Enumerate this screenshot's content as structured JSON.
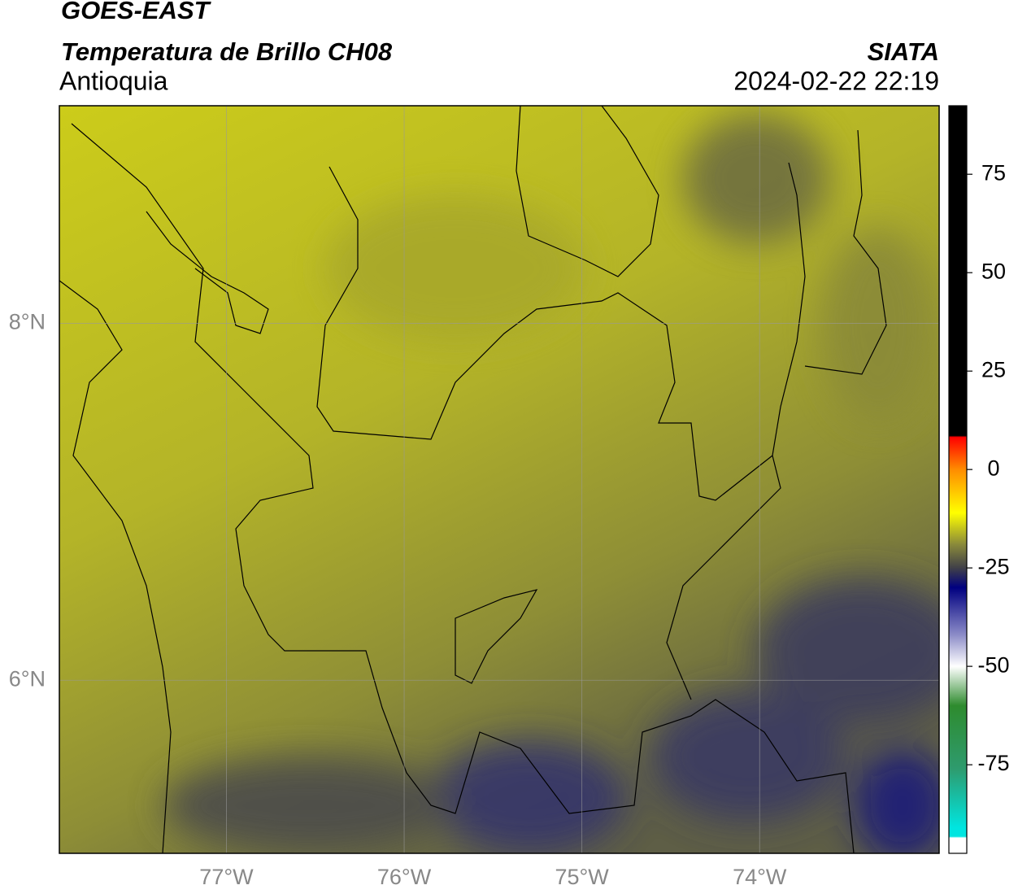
{
  "header": {
    "satellite": "GOES-EAST",
    "product": "Temperatura de Brillo CH08",
    "region": "Antioquia",
    "source": "SIATA",
    "datetime": "2024-02-22 22:19"
  },
  "map": {
    "xlim": [
      -77.94,
      -72.99
    ],
    "ylim": [
      5.03,
      9.22
    ],
    "xticks": [
      {
        "value": -77,
        "label": "77°W"
      },
      {
        "value": -76,
        "label": "76°W"
      },
      {
        "value": -75,
        "label": "75°W"
      },
      {
        "value": -74,
        "label": "74°W"
      }
    ],
    "yticks": [
      {
        "value": 8,
        "label": "8°N"
      },
      {
        "value": 6,
        "label": "6°N"
      }
    ],
    "grid": true
  },
  "colorbar": {
    "clim": [
      -97.5,
      92.4
    ],
    "ticks": [
      75,
      50,
      25,
      0,
      -25,
      -50,
      -75
    ],
    "stops": [
      {
        "value": 92.4,
        "color": "#000000"
      },
      {
        "value": 8.6,
        "color": "#000000"
      },
      {
        "value": 8.2,
        "color": "#ff0000"
      },
      {
        "value": 0,
        "color": "#ff8c00"
      },
      {
        "value": -11,
        "color": "#ffff00"
      },
      {
        "value": -19,
        "color": "#8a8a3a"
      },
      {
        "value": -25,
        "color": "#404048"
      },
      {
        "value": -30,
        "color": "#000080"
      },
      {
        "value": -42,
        "color": "#8c8cc8"
      },
      {
        "value": -50,
        "color": "#ffffff"
      },
      {
        "value": -60,
        "color": "#2e8b2e"
      },
      {
        "value": -76,
        "color": "#2e9b6e"
      },
      {
        "value": -91,
        "color": "#00e5e0"
      },
      {
        "value": -93.2,
        "color": "#00e5e0"
      },
      {
        "value": -93.6,
        "color": "#ffffff"
      },
      {
        "value": -97.5,
        "color": "#ffffff"
      }
    ]
  }
}
